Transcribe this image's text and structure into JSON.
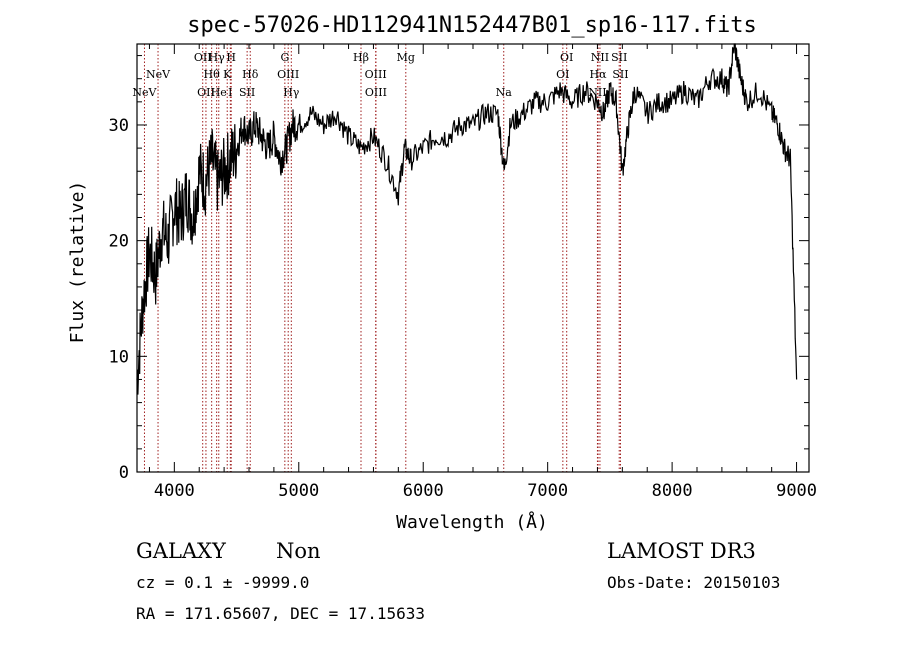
{
  "chart_data": {
    "type": "line",
    "title": "spec-57026-HD112941N152447B01_sp16-117.fits",
    "xlabel": "Wavelength (Å)",
    "ylabel": "Flux (relative)",
    "xlim": [
      3700,
      9100
    ],
    "ylim": [
      0,
      37
    ],
    "xticks": [
      4000,
      5000,
      6000,
      7000,
      8000,
      9000
    ],
    "yticks": [
      0,
      10,
      20,
      30
    ],
    "xtick_labels": [
      "4000",
      "5000",
      "6000",
      "7000",
      "8000",
      "9000"
    ],
    "ytick_labels": [
      "0",
      "10",
      "20",
      "30"
    ],
    "series": [
      {
        "name": "flux",
        "x": [
          3700,
          3750,
          3800,
          3850,
          3900,
          3950,
          4000,
          4050,
          4100,
          4150,
          4200,
          4250,
          4300,
          4350,
          4400,
          4450,
          4500,
          4550,
          4600,
          4650,
          4700,
          4750,
          4800,
          4850,
          4900,
          4950,
          5000,
          5100,
          5200,
          5300,
          5400,
          5500,
          5600,
          5700,
          5800,
          5850,
          5900,
          6000,
          6100,
          6200,
          6300,
          6400,
          6500,
          6600,
          6650,
          6700,
          6800,
          6900,
          7000,
          7100,
          7200,
          7300,
          7400,
          7450,
          7500,
          7550,
          7600,
          7650,
          7700,
          7800,
          7900,
          8000,
          8100,
          8200,
          8300,
          8400,
          8450,
          8500,
          8550,
          8600,
          8700,
          8800,
          8850,
          8900,
          8950,
          9000
        ],
        "values": [
          8,
          15,
          19,
          17,
          21,
          20,
          23,
          22,
          24,
          22,
          26,
          25,
          27,
          25,
          26,
          27,
          28,
          30,
          29,
          30,
          29,
          28,
          29,
          27,
          28,
          30,
          30,
          31,
          30,
          31,
          29,
          28,
          29,
          27,
          24,
          28,
          27,
          28,
          29,
          29,
          30,
          30,
          31,
          31,
          26,
          30,
          31,
          32,
          32,
          33,
          32,
          33,
          32,
          31,
          33,
          32,
          26,
          30,
          33,
          31,
          32,
          32,
          33,
          32,
          34,
          34,
          33,
          37,
          34,
          32,
          33,
          31,
          30,
          28,
          27,
          8
        ]
      }
    ],
    "line_markers": [
      {
        "wavelength": 3760,
        "label": "NeV",
        "row": 3
      },
      {
        "wavelength": 3869,
        "label": "NeV",
        "row": 2
      },
      {
        "wavelength": 4228,
        "label": "OII",
        "row": 0
      },
      {
        "wavelength": 4254,
        "label": "OII",
        "row": 3
      },
      {
        "wavelength": 4300,
        "label": "Hθ",
        "row": 2
      },
      {
        "wavelength": 4340,
        "label": "Hγ",
        "row": 0
      },
      {
        "wavelength": 4357,
        "label": "He",
        "row": 3
      },
      {
        "wavelength": 4425,
        "label": "K",
        "row": 2
      },
      {
        "wavelength": 4457,
        "label": "H",
        "row": 0
      },
      {
        "wavelength": 4450,
        "label": "I",
        "row": 3
      },
      {
        "wavelength": 4585,
        "label": "SII",
        "row": 3
      },
      {
        "wavelength": 4610,
        "label": "Hδ",
        "row": 2
      },
      {
        "wavelength": 4888,
        "label": "G",
        "row": 0
      },
      {
        "wavelength": 4915,
        "label": "OIII",
        "row": 2
      },
      {
        "wavelength": 4940,
        "label": "Hγ",
        "row": 3
      },
      {
        "wavelength": 5500,
        "label": "Hβ",
        "row": 0
      },
      {
        "wavelength": 5618,
        "label": "OIII",
        "row": 2
      },
      {
        "wavelength": 5620,
        "label": "OIII",
        "row": 3
      },
      {
        "wavelength": 5860,
        "label": "Mg",
        "row": 0
      },
      {
        "wavelength": 6647,
        "label": "Na",
        "row": 3
      },
      {
        "wavelength": 7153,
        "label": "OI",
        "row": 0
      },
      {
        "wavelength": 7122,
        "label": "OI",
        "row": 2
      },
      {
        "wavelength": 7420,
        "label": "NII",
        "row": 0
      },
      {
        "wavelength": 7405,
        "label": "Hα",
        "row": 2
      },
      {
        "wavelength": 7400,
        "label": "NII",
        "row": 3
      },
      {
        "wavelength": 7575,
        "label": "SII",
        "row": 0
      },
      {
        "wavelength": 7585,
        "label": "SII",
        "row": 2
      }
    ],
    "grid": false
  },
  "info": {
    "class_label": "GALAXY",
    "subclass": "Non",
    "survey": "LAMOST DR3",
    "cz_line": "cz = 0.1 ± -9999.0",
    "obs_date": "Obs-Date: 20150103",
    "coords": "RA = 171.65607, DEC =  17.15633"
  },
  "colors": {
    "spectrum": "#000000",
    "marker_line": "#a02020",
    "background": "#ffffff"
  }
}
